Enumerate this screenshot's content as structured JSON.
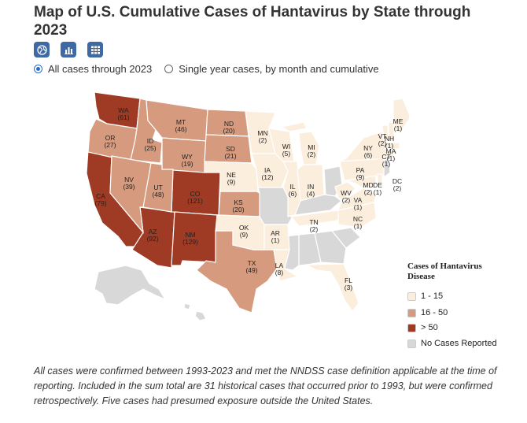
{
  "header": {
    "title": "Map of U.S. Cumulative Cases of Hantavirus by State through 2023"
  },
  "view_buttons": [
    {
      "name": "map-view-button",
      "icon": "globe-icon"
    },
    {
      "name": "chart-view-button",
      "icon": "bar-chart-icon"
    },
    {
      "name": "table-view-button",
      "icon": "table-grid-icon"
    }
  ],
  "options": {
    "selected": "all",
    "all_label": "All cases through 2023",
    "single_label": "Single year cases, by month and cumulative"
  },
  "legend": {
    "title": "Cases of Hantavirus Disease",
    "items": [
      {
        "label": "1 - 15",
        "color": "#fbeedd"
      },
      {
        "label": "16 - 50",
        "color": "#d69b7e"
      },
      {
        "label": "> 50",
        "color": "#9f3b24"
      },
      {
        "label": "No Cases Reported",
        "color": "#d8d8d8"
      }
    ]
  },
  "states": {
    "WA": {
      "abbr": "WA",
      "cases": "(61)"
    },
    "OR": {
      "abbr": "OR",
      "cases": "(27)"
    },
    "CA": {
      "abbr": "CA",
      "cases": "(79)"
    },
    "ID": {
      "abbr": "ID",
      "cases": "(25)"
    },
    "NV": {
      "abbr": "NV",
      "cases": "(39)"
    },
    "MT": {
      "abbr": "MT",
      "cases": "(46)"
    },
    "WY": {
      "abbr": "WY",
      "cases": "(19)"
    },
    "UT": {
      "abbr": "UT",
      "cases": "(48)"
    },
    "AZ": {
      "abbr": "AZ",
      "cases": "(92)"
    },
    "CO": {
      "abbr": "CO",
      "cases": "(121)"
    },
    "NM": {
      "abbr": "NM",
      "cases": "(129)"
    },
    "ND": {
      "abbr": "ND",
      "cases": "(20)"
    },
    "SD": {
      "abbr": "SD",
      "cases": "(21)"
    },
    "NE": {
      "abbr": "NE",
      "cases": "(9)"
    },
    "KS": {
      "abbr": "KS",
      "cases": "(20)"
    },
    "OK": {
      "abbr": "OK",
      "cases": "(9)"
    },
    "TX": {
      "abbr": "TX",
      "cases": "(49)"
    },
    "MN": {
      "abbr": "MN",
      "cases": "(2)"
    },
    "IA": {
      "abbr": "IA",
      "cases": "(12)"
    },
    "WI": {
      "abbr": "WI",
      "cases": "(5)"
    },
    "IL": {
      "abbr": "IL",
      "cases": "(6)"
    },
    "MI": {
      "abbr": "MI",
      "cases": "(2)"
    },
    "IN": {
      "abbr": "IN",
      "cases": "(4)"
    },
    "AR": {
      "abbr": "AR",
      "cases": "(1)"
    },
    "LA": {
      "abbr": "LA",
      "cases": "(8)"
    },
    "TN": {
      "abbr": "TN",
      "cases": "(2)"
    },
    "NC": {
      "abbr": "NC",
      "cases": "(1)"
    },
    "VA": {
      "abbr": "VA",
      "cases": "(1)"
    },
    "WV": {
      "abbr": "WV",
      "cases": "(2)"
    },
    "PA": {
      "abbr": "PA",
      "cases": "(9)"
    },
    "MD": {
      "abbr": "MD",
      "cases": "(2)"
    },
    "DE": {
      "abbr": "DE",
      "cases": "(1)"
    },
    "NY": {
      "abbr": "NY",
      "cases": "(6)"
    },
    "VT": {
      "abbr": "VT",
      "cases": "(2)"
    },
    "NH": {
      "abbr": "NH",
      "cases": "(1)"
    },
    "MA": {
      "abbr": "MA",
      "cases": "(1)"
    },
    "CT": {
      "abbr": "CT",
      "cases": "(1)"
    },
    "ME": {
      "abbr": "ME",
      "cases": "(1)"
    },
    "FL": {
      "abbr": "FL",
      "cases": "(3)"
    },
    "DC": {
      "abbr": "DC",
      "cases": "(2)"
    }
  },
  "footnote": "All cases were confirmed between 1993-2023 and met the NNDSS case definition applicable at the time of reporting. Included in the sum total are 31 historical cases that occurred prior to 1993, but were confirmed retrospectively. Five cases had presumed exposure outside the United States."
}
